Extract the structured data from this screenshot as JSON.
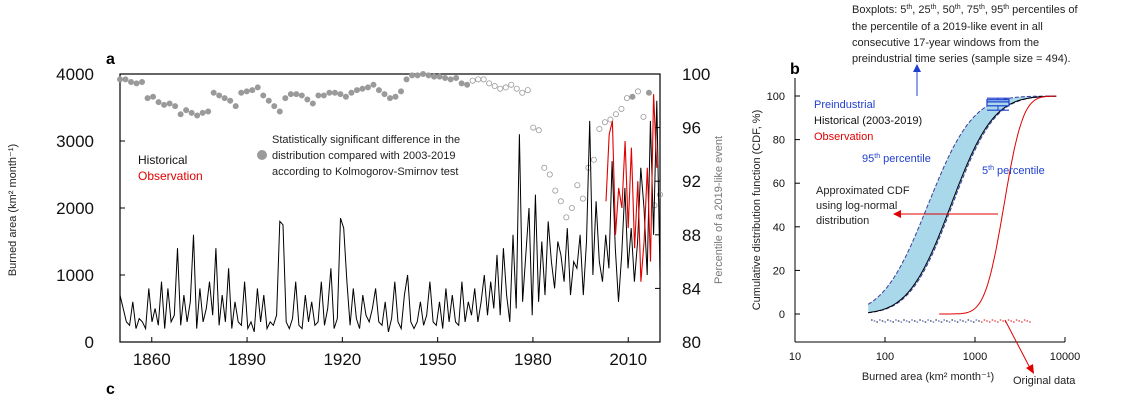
{
  "colors": {
    "historical": "#000000",
    "observation": "#e00000",
    "percentile": "#9a9a9a",
    "preindustrial": "#1f3fd0",
    "band_fill": "#a8d8ea",
    "band_edge": "#3a3a9a"
  },
  "panel_labels": {
    "a": "a",
    "b": "b",
    "c": "c"
  },
  "chart_data": [
    {
      "type": "line",
      "ylabel": "Burned area (km² month⁻¹)",
      "ylabel_right": "Percentile of a 2019-like event",
      "xlim": [
        1850,
        2020
      ],
      "ylim": [
        0,
        4000
      ],
      "ylim_right": [
        80,
        100
      ],
      "xticks": [
        "1860",
        "1890",
        "1920",
        "1950",
        "1980",
        "2010"
      ],
      "yticks": [
        "0",
        "1000",
        "2000",
        "3000",
        "4000"
      ],
      "yticks_right": [
        "80",
        "84",
        "88",
        "92",
        "96",
        "100"
      ],
      "legend": {
        "historical": "Historical",
        "observation": "Observation"
      },
      "annotation": {
        "line1": "Statistically significant difference in the",
        "line2": "distribution compared with 2003-2019",
        "line3": "according to Kolmogorov-Smirnov test"
      },
      "series": [
        {
          "name": "Historical",
          "x_start": 1850,
          "values": [
            700,
            500,
            300,
            250,
            600,
            200,
            350,
            300,
            200,
            800,
            300,
            500,
            250,
            900,
            200,
            800,
            300,
            400,
            1400,
            250,
            700,
            300,
            600,
            1600,
            200,
            800,
            300,
            500,
            900,
            400,
            1400,
            250,
            700,
            300,
            1100,
            200,
            600,
            300,
            250,
            900,
            200,
            300,
            150,
            800,
            300,
            700,
            200,
            300,
            250,
            400,
            1800,
            1750,
            300,
            200,
            350,
            900,
            250,
            200,
            700,
            300,
            600,
            250,
            300,
            900,
            250,
            500,
            1100,
            200,
            350,
            1850,
            1700,
            900,
            250,
            800,
            350,
            200,
            700,
            400,
            300,
            500,
            800,
            300,
            250,
            600,
            150,
            350,
            900,
            300,
            200,
            700,
            1000,
            300,
            200,
            300,
            600,
            250,
            400,
            900,
            300,
            250,
            600,
            200,
            800,
            300,
            700,
            300,
            250,
            900,
            300,
            600,
            400,
            800,
            300,
            600,
            1000,
            400,
            900,
            500,
            1300,
            400,
            1400,
            700,
            300,
            1600,
            500,
            3100,
            600,
            1300,
            2000,
            400,
            2200,
            600,
            1500,
            700,
            1800,
            1200,
            800,
            1500,
            1300,
            900,
            1700,
            700,
            1200,
            1100,
            1600,
            700,
            1500,
            3300,
            1000,
            2100,
            1200,
            900,
            1600,
            1100,
            2700,
            1400,
            600,
            1300,
            2300,
            1100,
            1700,
            900,
            1500,
            2600,
            2000,
            1000,
            3300,
            1600,
            3600,
            1000
          ]
        },
        {
          "name": "Observation",
          "x_start": 2003,
          "values": [
            2100,
            3100,
            3300,
            1600,
            2300,
            2000,
            3000,
            1700,
            2900,
            1400,
            2400,
            900,
            1500,
            2600,
            1200,
            3700,
            2600
          ]
        },
        {
          "name": "Percentile of a 2019-like event",
          "x_start": 1850,
          "values": [
            99.6,
            99.6,
            99.4,
            99.3,
            99.4,
            98.2,
            98.3,
            97.9,
            97.7,
            97.8,
            97.6,
            97.0,
            97.3,
            97.1,
            96.9,
            97.1,
            97.2,
            98.6,
            98.4,
            98.2,
            98.0,
            97.6,
            98.6,
            98.7,
            98.8,
            99.0,
            98.4,
            98.0,
            97.6,
            97.2,
            98.2,
            98.5,
            98.5,
            98.4,
            98.1,
            97.8,
            98.4,
            98.4,
            98.6,
            98.6,
            98.5,
            98.3,
            98.6,
            98.8,
            98.9,
            99.0,
            99.2,
            98.8,
            98.5,
            98.2,
            98.3,
            98.7,
            99.6,
            99.9,
            99.9,
            100,
            99.9,
            99.8,
            99.8,
            99.7,
            99.6,
            99.7,
            99.3,
            99.2,
            99.5,
            99.6,
            99.6,
            99.3,
            99.1,
            98.9,
            99.0,
            99.2,
            98.9,
            98.6,
            98.8,
            96.0,
            95.8,
            93.0,
            92.5,
            91.3,
            90.5,
            89.3,
            90.0,
            91.7,
            90.7,
            93.0,
            93.6,
            95.9,
            96.4,
            96.6,
            97.0,
            97.4,
            98.2,
            98.3,
            98.7,
            96.8,
            98.6,
            90.2,
            91.0
          ]
        }
      ]
    },
    {
      "type": "line",
      "xlabel": "Burned area (km² month⁻¹)",
      "ylabel": "Cumulative distribution function (CDF, %)",
      "xscale": "log",
      "xlim": [
        10,
        10000
      ],
      "ylim": [
        0,
        100
      ],
      "xticks": [
        "10",
        "100",
        "1000",
        "10000"
      ],
      "yticks": [
        "0",
        "20",
        "40",
        "60",
        "80",
        "100"
      ],
      "legend": {
        "preindustrial": "Preindustrial",
        "historical": "Historical (2003-2019)",
        "observation": "Observation"
      },
      "band_labels": {
        "p95": "95",
        "p95_suffix": "th",
        "p95_rest": " percentile",
        "p5": "5",
        "p5_suffix": "th",
        "p5_rest": " percentile"
      },
      "approx_note": {
        "line1": "Approximated CDF",
        "line2": "using log-normal",
        "line3": "distribution"
      },
      "original_data_label": "Original data",
      "boxplot_note": {
        "line1a": "Boxplots: 5",
        "line1b": ", 25",
        "line1c": ", 50",
        "line1d": ", 75",
        "line1e": ", 95",
        "line1f": " percentiles of",
        "sup": "th",
        "line2": "the percentile of a 2019-like event in all",
        "line3": "consecutive 17-year windows from the",
        "line4": "preindustrial time series (sample size = 494)."
      },
      "boxplot": {
        "p5": 93.5,
        "p25": 95.5,
        "p50": 97.3,
        "p75": 98.3,
        "p95": 99.0,
        "x": 1800
      },
      "series": [
        {
          "name": "Preindustrial 95th percentile",
          "median": 300,
          "sigma": 0.9
        },
        {
          "name": "Preindustrial 5th percentile",
          "median": 560,
          "sigma": 0.85
        },
        {
          "name": "Historical (2003-2019)",
          "median": 540,
          "sigma": 0.85
        },
        {
          "name": "Observation",
          "median": 2100,
          "sigma": 0.38
        }
      ]
    }
  ]
}
